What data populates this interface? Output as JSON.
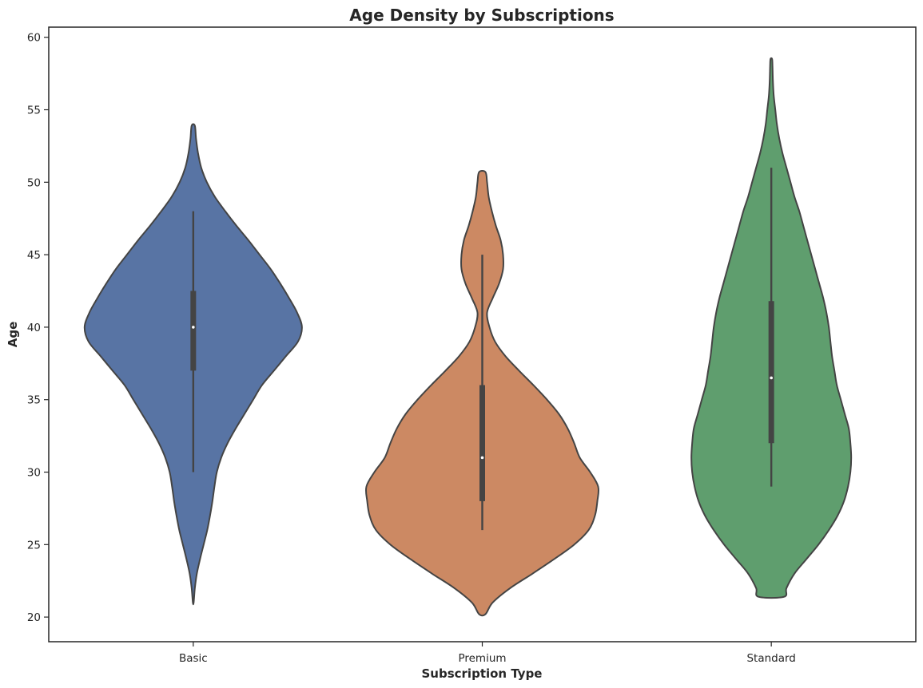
{
  "chart_data": {
    "type": "violin",
    "title": "Age Density by Subscriptions",
    "xlabel": "Subscription Type",
    "ylabel": "Age",
    "ylim": [
      18.3,
      60.7
    ],
    "yticks": [
      20,
      25,
      30,
      35,
      40,
      45,
      50,
      55,
      60
    ],
    "grid": false,
    "categories": [
      "Basic",
      "Premium",
      "Standard"
    ],
    "colors": [
      "#5874a4",
      "#cc8963",
      "#5f9e6e"
    ],
    "violins": [
      {
        "name": "Basic",
        "color": "#5874a4",
        "min": 30,
        "q1": 37,
        "median": 40,
        "q3": 42.5,
        "max": 48,
        "profile": [
          [
            21.0,
            0.5
          ],
          [
            22.0,
            2.0
          ],
          [
            23.0,
            4.5
          ],
          [
            24.0,
            8.5
          ],
          [
            25.0,
            13.0
          ],
          [
            26.0,
            17.5
          ],
          [
            27.0,
            21.0
          ],
          [
            28.0,
            24.0
          ],
          [
            29.0,
            26.5
          ],
          [
            30.0,
            29.5
          ],
          [
            31.0,
            35.0
          ],
          [
            32.0,
            43.0
          ],
          [
            33.0,
            53.0
          ],
          [
            34.0,
            64.0
          ],
          [
            35.0,
            75.0
          ],
          [
            36.0,
            86.0
          ],
          [
            37.0,
            101.0
          ],
          [
            38.0,
            116.0
          ],
          [
            39.0,
            131.0
          ],
          [
            40.0,
            136.0
          ],
          [
            41.0,
            130.0
          ],
          [
            42.0,
            120.0
          ],
          [
            43.0,
            109.0
          ],
          [
            44.0,
            97.0
          ],
          [
            45.0,
            83.0
          ],
          [
            46.0,
            69.0
          ],
          [
            47.0,
            54.0
          ],
          [
            48.0,
            40.0
          ],
          [
            49.0,
            27.0
          ],
          [
            50.0,
            17.0
          ],
          [
            51.0,
            10.0
          ],
          [
            52.0,
            6.0
          ],
          [
            53.0,
            3.5
          ],
          [
            53.9,
            2.0
          ]
        ]
      },
      {
        "name": "Premium",
        "color": "#cc8963",
        "min": 26,
        "q1": 28,
        "median": 31,
        "q3": 36,
        "max": 45,
        "profile": [
          [
            20.2,
            4.0
          ],
          [
            21.0,
            13.0
          ],
          [
            22.0,
            35.0
          ],
          [
            23.0,
            63.0
          ],
          [
            24.0,
            90.0
          ],
          [
            25.0,
            115.0
          ],
          [
            26.0,
            133.0
          ],
          [
            27.0,
            141.0
          ],
          [
            28.0,
            144.0
          ],
          [
            29.0,
            145.0
          ],
          [
            30.0,
            135.0
          ],
          [
            31.0,
            122.0
          ],
          [
            32.0,
            115.0
          ],
          [
            33.0,
            107.0
          ],
          [
            34.0,
            96.0
          ],
          [
            35.0,
            81.0
          ],
          [
            36.0,
            64.0
          ],
          [
            37.0,
            46.0
          ],
          [
            38.0,
            29.0
          ],
          [
            39.0,
            16.0
          ],
          [
            40.0,
            9.0
          ],
          [
            41.0,
            6.0
          ],
          [
            42.0,
            13.0
          ],
          [
            43.0,
            21.0
          ],
          [
            44.0,
            26.0
          ],
          [
            45.0,
            26.0
          ],
          [
            46.0,
            23.0
          ],
          [
            47.0,
            17.0
          ],
          [
            48.0,
            12.0
          ],
          [
            49.0,
            8.0
          ],
          [
            50.0,
            6.0
          ],
          [
            50.7,
            4.0
          ]
        ]
      },
      {
        "name": "Standard",
        "color": "#5f9e6e",
        "min": 29,
        "q1": 32,
        "median": 36.5,
        "q3": 41.8,
        "max": 51,
        "profile": [
          [
            21.4,
            16.0
          ],
          [
            22.0,
            19.0
          ],
          [
            23.0,
            29.0
          ],
          [
            24.0,
            44.0
          ],
          [
            25.0,
            59.0
          ],
          [
            26.0,
            72.0
          ],
          [
            27.0,
            83.0
          ],
          [
            28.0,
            91.0
          ],
          [
            29.0,
            96.0
          ],
          [
            30.0,
            99.0
          ],
          [
            31.0,
            100.0
          ],
          [
            32.0,
            99.0
          ],
          [
            33.0,
            97.0
          ],
          [
            34.0,
            92.0
          ],
          [
            35.0,
            87.0
          ],
          [
            36.0,
            82.0
          ],
          [
            37.0,
            79.0
          ],
          [
            38.0,
            76.0
          ],
          [
            39.0,
            74.0
          ],
          [
            40.0,
            72.0
          ],
          [
            41.0,
            69.0
          ],
          [
            42.0,
            65.0
          ],
          [
            43.0,
            60.0
          ],
          [
            44.0,
            55.0
          ],
          [
            45.0,
            50.0
          ],
          [
            46.0,
            45.0
          ],
          [
            47.0,
            40.0
          ],
          [
            48.0,
            35.0
          ],
          [
            49.0,
            29.0
          ],
          [
            50.0,
            24.0
          ],
          [
            51.0,
            19.0
          ],
          [
            52.0,
            14.0
          ],
          [
            53.0,
            10.0
          ],
          [
            54.0,
            7.0
          ],
          [
            55.0,
            5.0
          ],
          [
            56.0,
            3.0
          ],
          [
            57.0,
            2.0
          ],
          [
            58.0,
            1.5
          ],
          [
            58.5,
            1.0
          ]
        ]
      }
    ]
  }
}
